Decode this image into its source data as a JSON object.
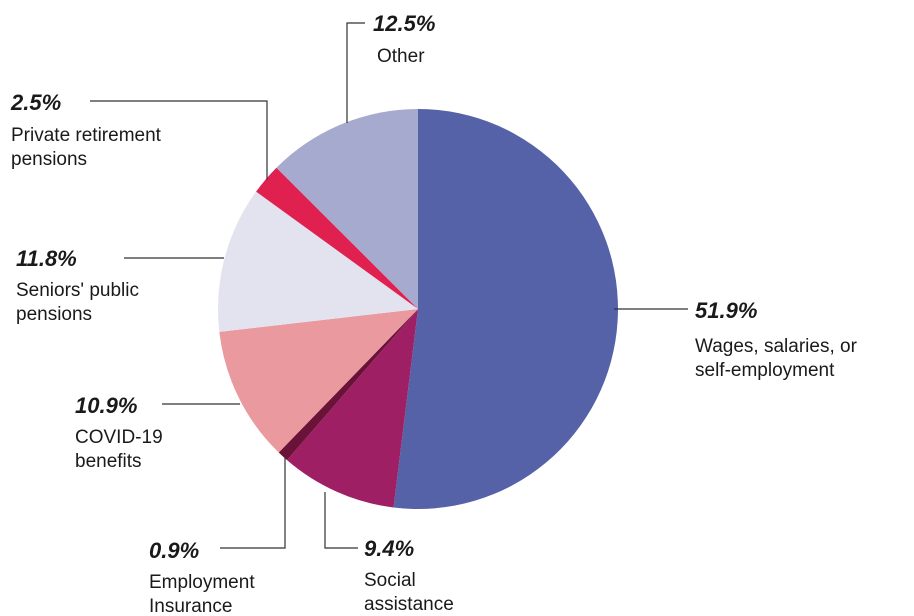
{
  "chart_data": {
    "type": "pie",
    "slices": [
      {
        "name": "Wages, salaries, or self-employment",
        "label_lines": [
          "Wages, salaries, or",
          "self-employment"
        ],
        "value": 51.9,
        "value_label": "51.9%",
        "color": "#5562A8"
      },
      {
        "name": "Social assistance",
        "label_lines": [
          "Social",
          "assistance"
        ],
        "value": 9.4,
        "value_label": "9.4%",
        "color": "#9E1F63"
      },
      {
        "name": "Employment Insurance",
        "label_lines": [
          "Employment",
          "Insurance"
        ],
        "value": 0.9,
        "value_label": "0.9%",
        "color": "#6B1238"
      },
      {
        "name": "COVID-19 benefits",
        "label_lines": [
          "COVID-19",
          "benefits"
        ],
        "value": 10.9,
        "value_label": "10.9%",
        "color": "#EA9A9E"
      },
      {
        "name": "Seniors' public pensions",
        "label_lines": [
          "Seniors' public",
          "pensions"
        ],
        "value": 11.8,
        "value_label": "11.8%",
        "color": "#E3E3F0"
      },
      {
        "name": "Private retirement pensions",
        "label_lines": [
          "Private retirement",
          "pensions"
        ],
        "value": 2.5,
        "value_label": "2.5%",
        "color": "#E0204F"
      },
      {
        "name": "Other",
        "label_lines": [
          "Other"
        ],
        "value": 12.5,
        "value_label": "12.5%",
        "color": "#A7AACF"
      }
    ],
    "start": "12 o'clock",
    "direction": "clockwise",
    "legend": "none (leader-line labels)"
  }
}
